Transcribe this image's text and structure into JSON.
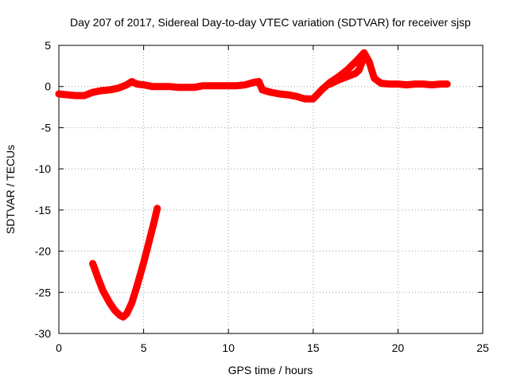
{
  "chart_data": {
    "type": "line",
    "title": "Day 207 of 2017, Sidereal Day-to-day VTEC variation (SDTVAR) for receiver sjsp",
    "xlabel": "GPS time / hours",
    "ylabel": "SDTVAR / TECUs",
    "xlim": [
      0,
      25
    ],
    "ylim": [
      -30,
      5
    ],
    "xticks": [
      0,
      5,
      10,
      15,
      20,
      25
    ],
    "yticks": [
      5,
      0,
      -5,
      -10,
      -15,
      -20,
      -25,
      -30
    ],
    "xtick_labels": [
      "0",
      "5",
      "10",
      "15",
      "20",
      "25"
    ],
    "ytick_labels": [
      "5",
      "0",
      "-5",
      "-10",
      "-15",
      "-20",
      "-25",
      "-30"
    ],
    "grid": true,
    "series_color": "#ff0000",
    "series": [
      {
        "name": "main trace",
        "x": [
          0.0,
          0.5,
          1.0,
          1.5,
          2.0,
          2.5,
          3.0,
          3.5,
          4.0,
          4.3,
          4.6,
          5.0,
          5.5,
          6.0,
          6.5,
          7.0,
          7.5,
          8.0,
          8.5,
          9.0,
          9.5,
          10.0,
          10.5,
          11.0,
          11.5,
          11.8,
          12.0,
          12.5,
          13.0,
          13.5,
          14.0,
          14.5,
          15.0,
          15.5,
          16.0,
          16.5,
          17.0,
          17.5,
          18.0,
          18.3,
          18.6,
          19.0,
          19.5,
          20.0,
          20.5,
          21.0,
          21.5,
          22.0,
          22.5,
          22.9
        ],
        "y": [
          -0.9,
          -1.0,
          -1.1,
          -1.1,
          -0.7,
          -0.5,
          -0.4,
          -0.2,
          0.2,
          0.6,
          0.3,
          0.2,
          0.0,
          0.0,
          0.0,
          -0.1,
          -0.1,
          -0.1,
          0.1,
          0.1,
          0.1,
          0.1,
          0.1,
          0.2,
          0.5,
          0.6,
          -0.4,
          -0.7,
          -0.9,
          -1.0,
          -1.2,
          -1.5,
          -1.5,
          -0.4,
          0.5,
          1.2,
          2.0,
          3.0,
          4.1,
          3.0,
          1.0,
          0.4,
          0.3,
          0.3,
          0.2,
          0.3,
          0.3,
          0.2,
          0.3,
          0.3
        ]
      },
      {
        "name": "sub-trace around 17-18 h",
        "x": [
          16.0,
          16.5,
          17.0,
          17.5,
          17.7,
          18.0
        ],
        "y": [
          0.3,
          0.8,
          1.2,
          1.6,
          2.0,
          3.6
        ]
      },
      {
        "name": "isolated segment (2-6 h)",
        "x": [
          2.0,
          2.3,
          2.6,
          3.0,
          3.3,
          3.6,
          3.8,
          4.0,
          4.3,
          4.6,
          5.0,
          5.3,
          5.6,
          5.8
        ],
        "y": [
          -21.5,
          -23.2,
          -24.8,
          -26.3,
          -27.2,
          -27.8,
          -28.0,
          -27.6,
          -26.3,
          -24.3,
          -21.4,
          -19.0,
          -16.6,
          -14.8
        ]
      }
    ]
  }
}
